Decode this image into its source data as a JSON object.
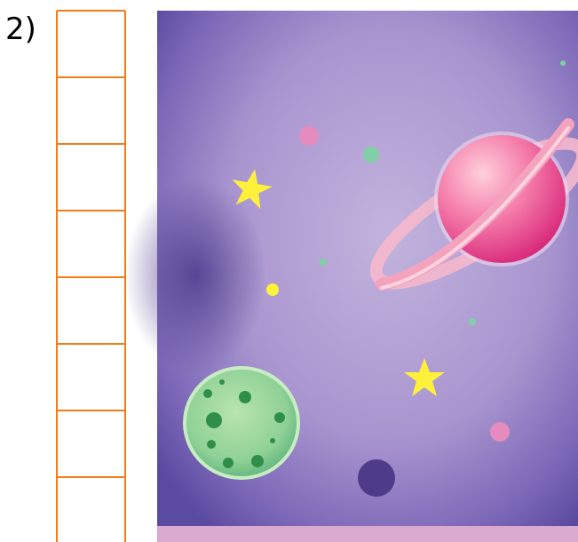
{
  "label": "2)"
}
